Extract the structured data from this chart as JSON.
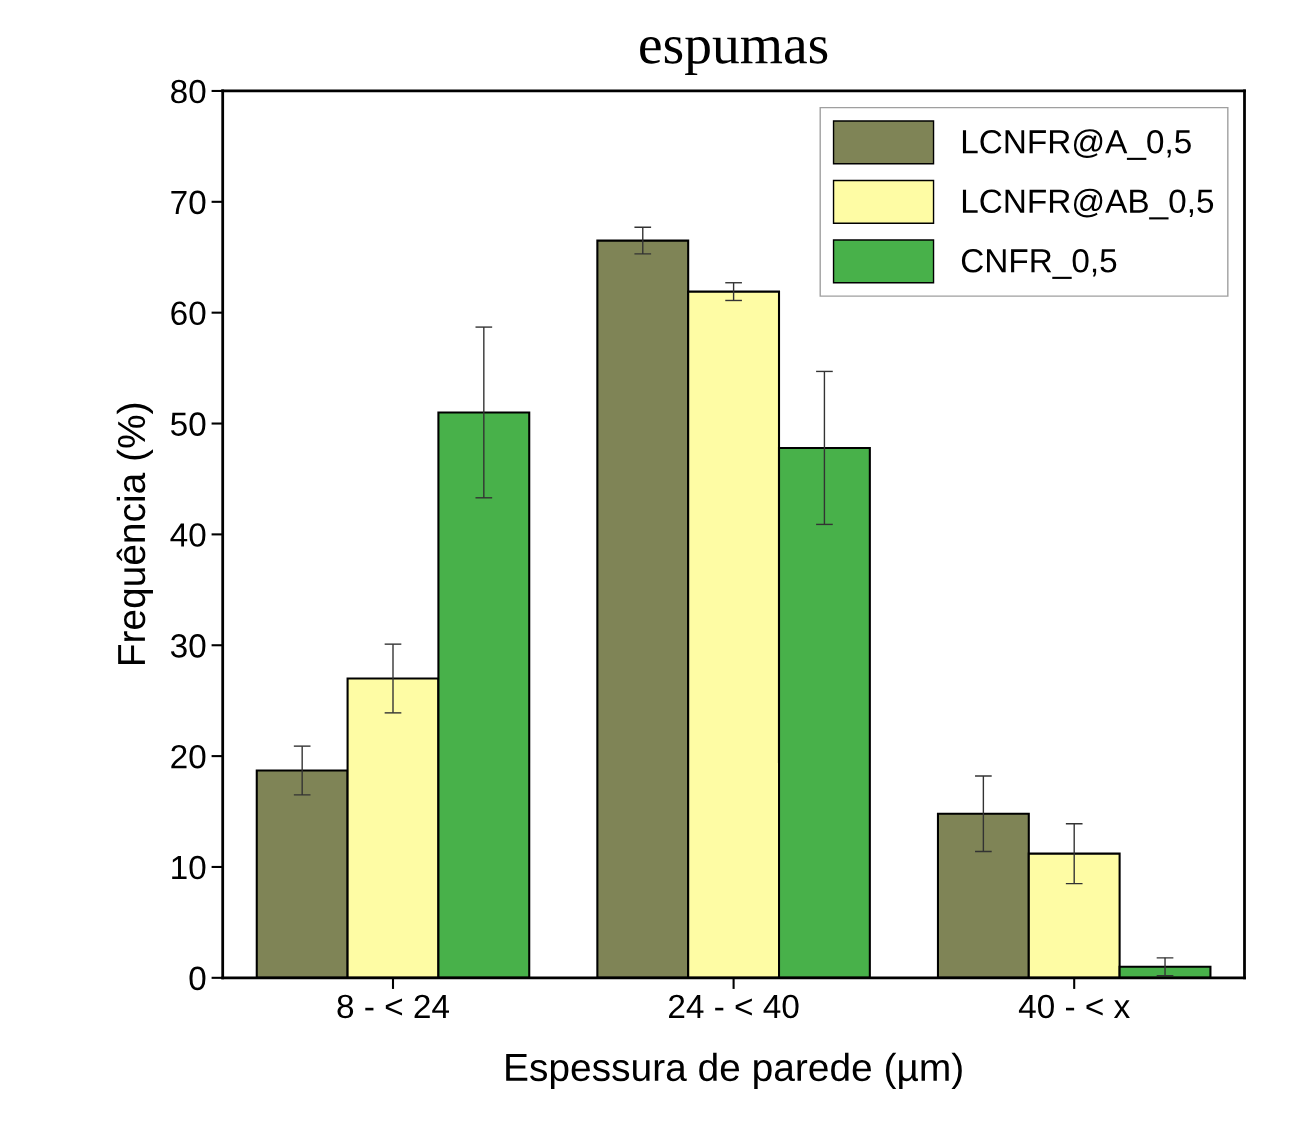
{
  "chart_data": {
    "type": "bar",
    "title": "espumas",
    "xlabel": "Espessura de parede (µm)",
    "ylabel": "Frequência (%)",
    "categories": [
      "8 - < 24",
      "24 - < 40",
      "40 - < x"
    ],
    "series": [
      {
        "name": "LCNFR@A_0,5",
        "color": "#7f8456",
        "values": [
          18.7,
          66.5,
          14.8
        ],
        "errors": [
          2.2,
          1.2,
          3.4
        ]
      },
      {
        "name": "LCNFR@AB_0,5",
        "color": "#fefca4",
        "values": [
          27.0,
          61.9,
          11.2
        ],
        "errors": [
          3.1,
          0.8,
          2.7
        ]
      },
      {
        "name": "CNFR_0,5",
        "color": "#48b14a",
        "values": [
          51.0,
          47.8,
          1.0
        ],
        "errors": [
          7.7,
          6.9,
          0.8
        ]
      }
    ],
    "ylim": [
      0,
      80
    ],
    "yticks": [
      0,
      10,
      20,
      30,
      40,
      50,
      60,
      70,
      80
    ],
    "grid": false,
    "legend": "top right"
  }
}
